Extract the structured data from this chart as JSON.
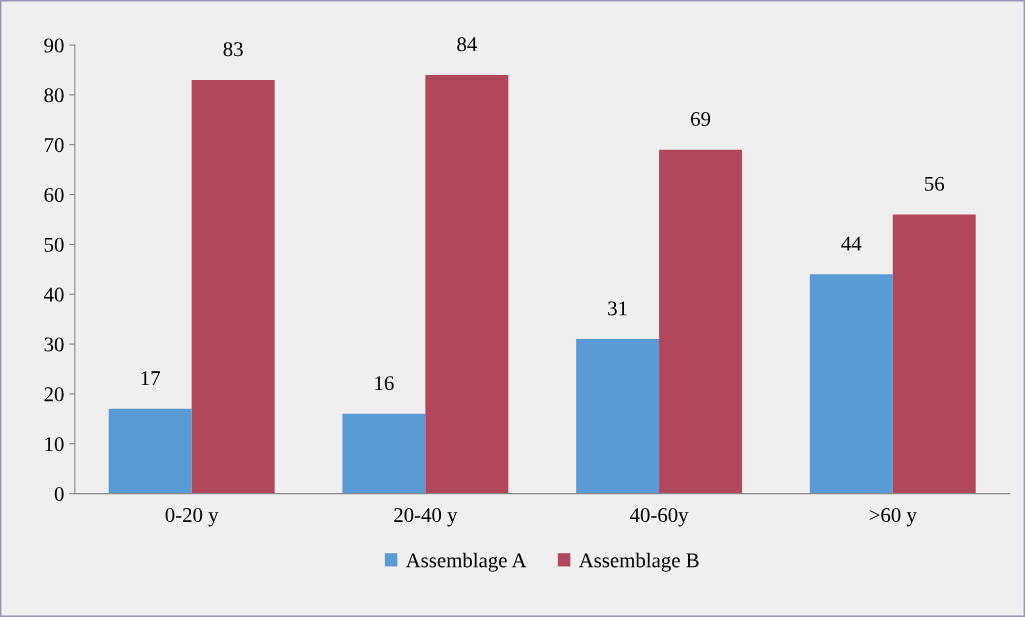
{
  "chart_data": {
    "type": "bar",
    "categories": [
      "0-20 y",
      "20-40 y",
      "40-60y",
      ">60 y"
    ],
    "series": [
      {
        "name": "Assemblage A",
        "color": "#5b9bd5",
        "values": [
          17,
          16,
          31,
          44
        ]
      },
      {
        "name": "Assemblage B",
        "color": "#b0475a",
        "values": [
          83,
          84,
          69,
          56
        ]
      }
    ],
    "ylim": [
      0,
      90
    ],
    "yticks": [
      0,
      10,
      20,
      30,
      40,
      50,
      60,
      70,
      80,
      90
    ],
    "grid": false,
    "legend": "bottom",
    "data_labels": true
  }
}
